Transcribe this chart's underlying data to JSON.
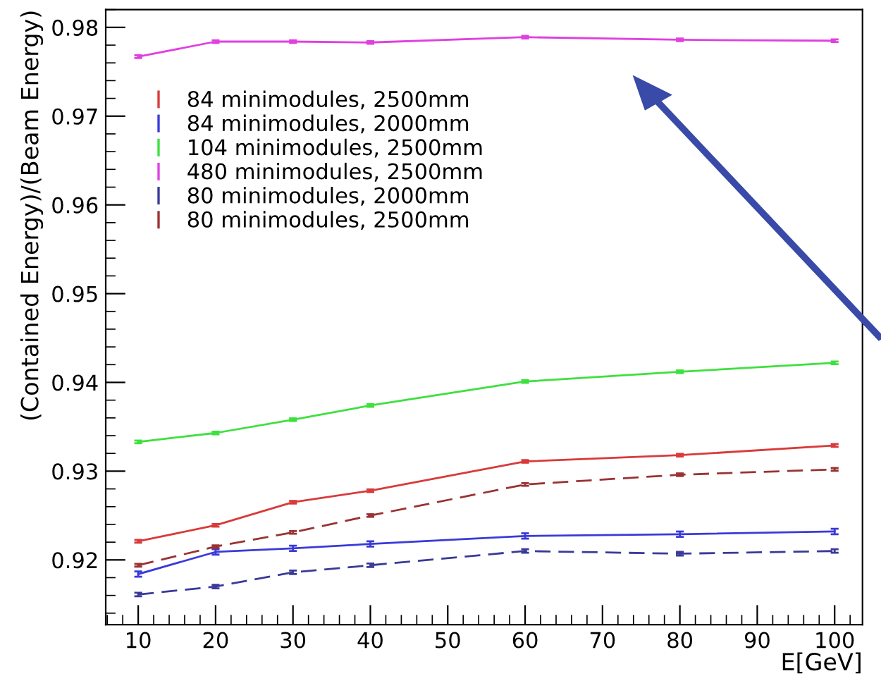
{
  "chart_data": {
    "type": "line",
    "xlabel": "E[GeV]",
    "ylabel": "(Contained Energy)/(Beam Energy)",
    "x": [
      10,
      20,
      30,
      40,
      60,
      80,
      100
    ],
    "series": [
      {
        "name": "84 minimodules, 2500mm",
        "color": "#d93a3a",
        "line_style": "solid",
        "values": [
          0.9221,
          0.9239,
          0.9265,
          0.9278,
          0.9311,
          0.9318,
          0.9329
        ],
        "errors": [
          0.00015,
          0.00015,
          0.00015,
          0.00015,
          0.00015,
          0.00015,
          0.00015
        ]
      },
      {
        "name": "84 minimodules, 2000mm",
        "color": "#3a3ad9",
        "line_style": "solid",
        "values": [
          0.9184,
          0.9209,
          0.9213,
          0.9218,
          0.9227,
          0.9229,
          0.9232
        ],
        "errors": [
          0.0003,
          0.0003,
          0.0003,
          0.0003,
          0.0003,
          0.0003,
          0.0003
        ]
      },
      {
        "name": "104 minimodules, 2500mm",
        "color": "#3ee03e",
        "line_style": "solid",
        "values": [
          0.9333,
          0.9343,
          0.9358,
          0.9374,
          0.9401,
          0.9412,
          0.9422
        ],
        "errors": [
          0.00015,
          0.00015,
          0.00015,
          0.00015,
          0.00015,
          0.00015,
          0.00015
        ]
      },
      {
        "name": "480 minimodules, 2500mm",
        "color": "#e040e0",
        "line_style": "solid",
        "values": [
          0.9767,
          0.9784,
          0.9784,
          0.9783,
          0.9789,
          0.9786,
          0.9785
        ],
        "errors": [
          0.00015,
          0.00015,
          0.00015,
          0.00015,
          0.00015,
          0.00015,
          0.00015
        ]
      },
      {
        "name": "80 minimodules, 2000mm",
        "color": "#3a3a99",
        "line_style": "dashed",
        "values": [
          0.9161,
          0.917,
          0.9186,
          0.9194,
          0.921,
          0.9207,
          0.921
        ],
        "errors": [
          0.0002,
          0.0002,
          0.0002,
          0.0002,
          0.0002,
          0.0002,
          0.0002
        ]
      },
      {
        "name": "80 minimodules, 2500mm",
        "color": "#993333",
        "line_style": "dashed",
        "values": [
          0.9194,
          0.9215,
          0.9231,
          0.925,
          0.9285,
          0.9296,
          0.9302
        ],
        "errors": [
          0.00015,
          0.00015,
          0.00015,
          0.00015,
          0.00015,
          0.00015,
          0.00015
        ]
      }
    ],
    "xlim": [
      5.8,
      103.6
    ],
    "xticks": [
      10,
      20,
      30,
      40,
      50,
      60,
      70,
      80,
      90,
      100
    ],
    "ylim": [
      0.9127,
      0.982
    ],
    "yticks": [
      0.92,
      0.93,
      0.94,
      0.95,
      0.96,
      0.97,
      0.98
    ],
    "grid": false,
    "legend": "top left",
    "marker": "none"
  }
}
